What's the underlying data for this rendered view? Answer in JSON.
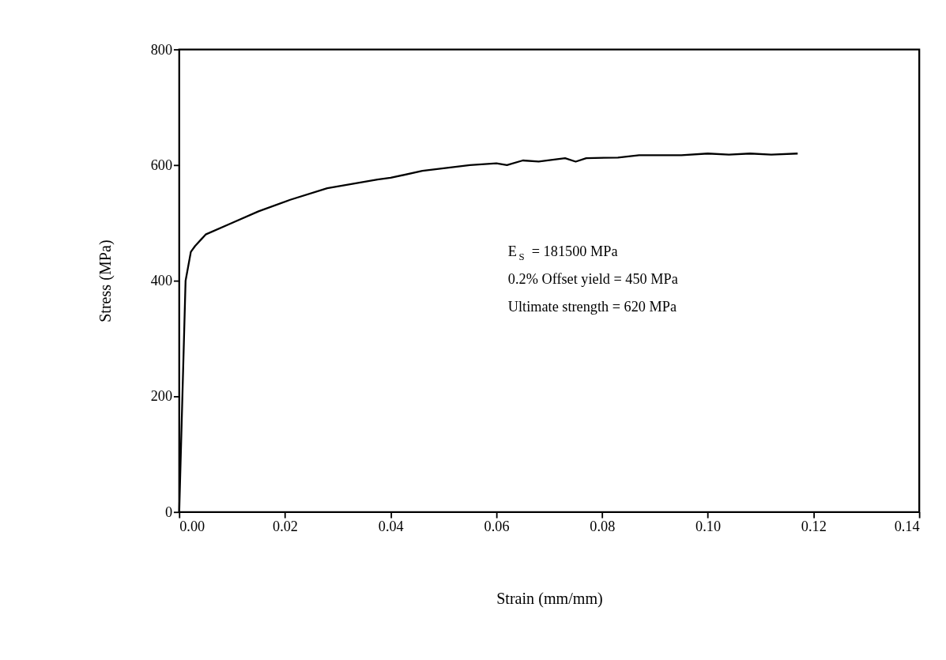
{
  "chart_data": {
    "type": "line",
    "xlabel": "Strain (mm/mm)",
    "ylabel": "Stress (MPa)",
    "x": [
      0,
      0.0006,
      0.0012,
      0.0022,
      0.003,
      0.005,
      0.01,
      0.015,
      0.021,
      0.028,
      0.0375,
      0.04,
      0.046,
      0.055,
      0.06,
      0.062,
      0.065,
      0.068,
      0.073,
      0.075,
      0.077,
      0.083,
      0.087,
      0.095,
      0.1,
      0.104,
      0.108,
      0.112,
      0.117
    ],
    "series": [
      {
        "color": "#000000",
        "values": [
          0,
          200,
          400,
          450,
          460,
          480,
          500,
          520,
          540,
          560,
          575,
          578,
          590,
          600,
          603,
          600,
          608,
          606,
          612,
          606,
          612,
          613,
          617,
          617,
          620,
          618,
          620,
          618,
          620
        ]
      }
    ],
    "xlim": [
      0,
      0.14
    ],
    "ylim": [
      0,
      800
    ],
    "xticks": [
      {
        "value": 0,
        "label": "0.00"
      },
      {
        "value": 0.02,
        "label": "0.02"
      },
      {
        "value": 0.04,
        "label": "0.04"
      },
      {
        "value": 0.06,
        "label": "0.06"
      },
      {
        "value": 0.08,
        "label": "0.08"
      },
      {
        "value": 0.1,
        "label": "0.10"
      },
      {
        "value": 0.12,
        "label": "0.12"
      },
      {
        "value": 0.14,
        "label": "0.14"
      }
    ],
    "yticks": [
      0,
      200,
      400,
      600,
      800
    ],
    "annotations": [
      "E$_{S}$ = 181500 MPa",
      "0.2% Offset yield = 450 MPa",
      "Ultimate strength = 620 MPa"
    ],
    "marker": "none",
    "line_style": "solid"
  }
}
